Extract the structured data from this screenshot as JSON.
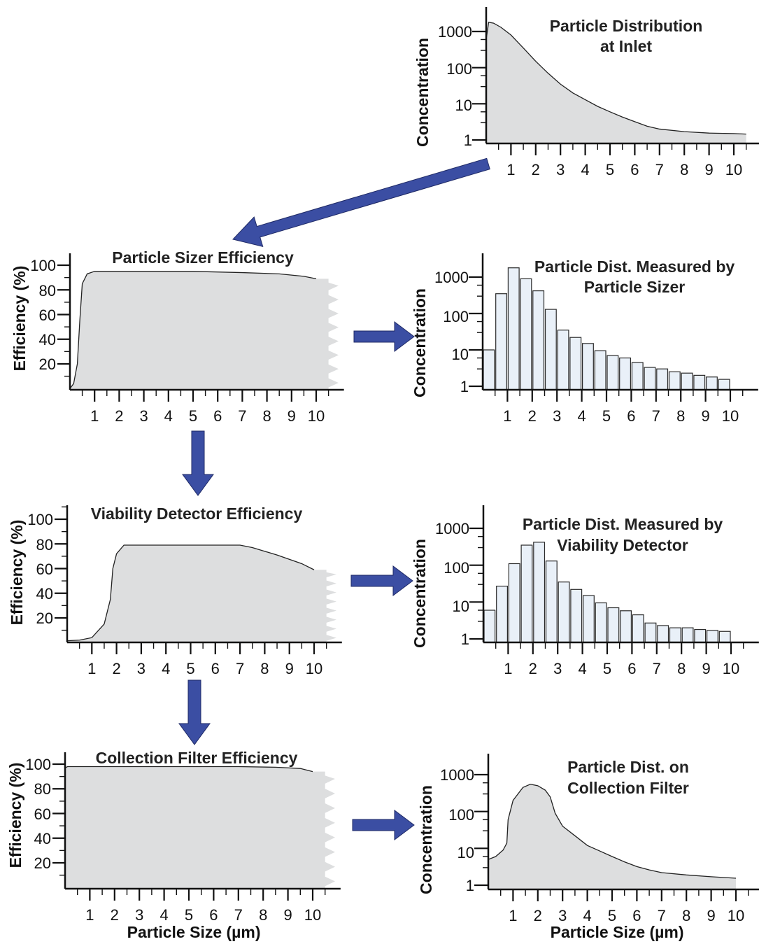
{
  "x_ticks": [
    "1",
    "2",
    "3",
    "4",
    "5",
    "6",
    "7",
    "8",
    "9",
    "10"
  ],
  "panels": [
    {
      "id": "inlet",
      "type": "area",
      "title": [
        "Particle Distribution",
        "at Inlet"
      ],
      "ylabel": "Concentration",
      "xlabel": "",
      "scale": "log",
      "y_ticks": [
        "1",
        "10",
        "100",
        "1000"
      ],
      "y_tick_values": [
        1,
        10,
        100,
        1000
      ],
      "ylim": [
        1,
        3000
      ],
      "xlim": [
        0,
        10.9
      ],
      "curve": [
        [
          0,
          600
        ],
        [
          0.1,
          1800
        ],
        [
          0.3,
          1700
        ],
        [
          0.6,
          1300
        ],
        [
          1,
          800
        ],
        [
          1.5,
          350
        ],
        [
          2,
          150
        ],
        [
          2.5,
          70
        ],
        [
          3,
          35
        ],
        [
          3.5,
          20
        ],
        [
          4,
          13
        ],
        [
          4.5,
          8.5
        ],
        [
          5,
          6
        ],
        [
          5.5,
          4.3
        ],
        [
          6,
          3.2
        ],
        [
          6.5,
          2.4
        ],
        [
          7,
          2
        ],
        [
          8,
          1.7
        ],
        [
          9,
          1.55
        ],
        [
          10,
          1.5
        ],
        [
          10.5,
          1.45
        ]
      ]
    },
    {
      "id": "sizer-eff",
      "type": "efficiency",
      "title": [
        "Particle Sizer Efficiency"
      ],
      "ylabel": "Efficiency (%)",
      "xlabel": "",
      "scale": "linear",
      "y_ticks": [
        "20",
        "40",
        "60",
        "80",
        "100"
      ],
      "y_tick_values": [
        20,
        40,
        60,
        80,
        100
      ],
      "ylim": [
        0,
        100
      ],
      "xlim": [
        0,
        10.9
      ],
      "curve": [
        [
          0,
          0
        ],
        [
          0.15,
          4
        ],
        [
          0.3,
          20
        ],
        [
          0.4,
          55
        ],
        [
          0.5,
          85
        ],
        [
          0.7,
          93
        ],
        [
          1,
          95
        ],
        [
          3,
          95
        ],
        [
          5,
          95
        ],
        [
          7,
          94
        ],
        [
          8.5,
          93
        ],
        [
          9.5,
          91
        ],
        [
          10,
          89
        ]
      ]
    },
    {
      "id": "sizer-dist",
      "type": "bar",
      "title": [
        "Particle Dist. Measured by",
        "Particle Sizer"
      ],
      "ylabel": "Concentration",
      "xlabel": "",
      "scale": "log",
      "y_ticks": [
        "1",
        "10",
        "100",
        "1000"
      ],
      "y_tick_values": [
        1,
        10,
        100,
        1000
      ],
      "ylim": [
        1,
        3000
      ],
      "xlim": [
        0,
        10.9
      ],
      "bar_width": 0.5,
      "bars": [
        [
          0.25,
          10
        ],
        [
          0.75,
          350
        ],
        [
          1.25,
          1800
        ],
        [
          1.75,
          900
        ],
        [
          2.25,
          420
        ],
        [
          2.75,
          130
        ],
        [
          3.25,
          35
        ],
        [
          3.75,
          22
        ],
        [
          4.25,
          15
        ],
        [
          4.75,
          9.5
        ],
        [
          5.25,
          7
        ],
        [
          5.75,
          6
        ],
        [
          6.25,
          4.5
        ],
        [
          6.75,
          3.3
        ],
        [
          7.25,
          3
        ],
        [
          7.75,
          2.5
        ],
        [
          8.25,
          2.3
        ],
        [
          8.75,
          2
        ],
        [
          9.25,
          1.8
        ],
        [
          9.75,
          1.55
        ]
      ]
    },
    {
      "id": "viability-eff",
      "type": "efficiency",
      "title": [
        "Viability Detector Efficiency"
      ],
      "ylabel": "Efficiency (%)",
      "xlabel": "",
      "scale": "linear",
      "y_ticks": [
        "20",
        "40",
        "60",
        "80",
        "100"
      ],
      "y_tick_values": [
        20,
        40,
        60,
        80,
        100
      ],
      "ylim": [
        0,
        100
      ],
      "xlim": [
        0,
        10.9
      ],
      "curve": [
        [
          0,
          1.5
        ],
        [
          0.5,
          2
        ],
        [
          1,
          4
        ],
        [
          1.5,
          15
        ],
        [
          1.75,
          35
        ],
        [
          1.85,
          60
        ],
        [
          2,
          72
        ],
        [
          2.3,
          79
        ],
        [
          3,
          79
        ],
        [
          5,
          79
        ],
        [
          7,
          79
        ],
        [
          7.5,
          77
        ],
        [
          8.5,
          71
        ],
        [
          9.5,
          64
        ],
        [
          10,
          59
        ]
      ]
    },
    {
      "id": "viability-dist",
      "type": "bar",
      "title": [
        "Particle Dist. Measured by",
        "Viability Detector"
      ],
      "ylabel": "Concentration",
      "xlabel": "",
      "scale": "log",
      "y_ticks": [
        "1",
        "10",
        "100",
        "1000"
      ],
      "y_tick_values": [
        1,
        10,
        100,
        1000
      ],
      "ylim": [
        1,
        3000
      ],
      "xlim": [
        0,
        10.9
      ],
      "bar_width": 0.5,
      "bars": [
        [
          0.25,
          6
        ],
        [
          0.75,
          27
        ],
        [
          1.25,
          110
        ],
        [
          1.75,
          350
        ],
        [
          2.25,
          420
        ],
        [
          2.75,
          130
        ],
        [
          3.25,
          35
        ],
        [
          3.75,
          22
        ],
        [
          4.25,
          15
        ],
        [
          4.75,
          9.5
        ],
        [
          5.25,
          7
        ],
        [
          5.75,
          5.8
        ],
        [
          6.25,
          4.5
        ],
        [
          6.75,
          2.7
        ],
        [
          7.25,
          2.3
        ],
        [
          7.75,
          2
        ],
        [
          8.25,
          2
        ],
        [
          8.75,
          1.8
        ],
        [
          9.25,
          1.7
        ],
        [
          9.75,
          1.6
        ]
      ]
    },
    {
      "id": "filter-eff",
      "type": "efficiency",
      "title": [
        "Collection Filter Efficiency"
      ],
      "ylabel": "Efficiency (%)",
      "xlabel": "Particle Size (µm)",
      "scale": "linear",
      "y_ticks": [
        "20",
        "40",
        "60",
        "80",
        "100"
      ],
      "y_tick_values": [
        20,
        40,
        60,
        80,
        100
      ],
      "ylim": [
        0,
        100
      ],
      "xlim": [
        0,
        10.9
      ],
      "curve": [
        [
          0,
          97
        ],
        [
          0.1,
          98
        ],
        [
          1,
          98
        ],
        [
          3,
          98
        ],
        [
          5,
          98
        ],
        [
          7,
          98
        ],
        [
          8.5,
          97.5
        ],
        [
          9.5,
          96.5
        ],
        [
          10,
          94
        ]
      ]
    },
    {
      "id": "filter-dist",
      "type": "area",
      "title": [
        "Particle Dist. on",
        "Collection Filter"
      ],
      "ylabel": "Concentration",
      "xlabel": "Particle Size (µm)",
      "scale": "log",
      "y_ticks": [
        "1",
        "10",
        "100",
        "1000"
      ],
      "y_tick_values": [
        1,
        10,
        100,
        1000
      ],
      "ylim": [
        1,
        3000
      ],
      "xlim": [
        0,
        10.9
      ],
      "curve": [
        [
          0,
          5
        ],
        [
          0.3,
          6
        ],
        [
          0.6,
          9
        ],
        [
          0.75,
          14
        ],
        [
          0.8,
          60
        ],
        [
          1,
          200
        ],
        [
          1.4,
          450
        ],
        [
          1.7,
          550
        ],
        [
          2,
          500
        ],
        [
          2.3,
          380
        ],
        [
          2.5,
          250
        ],
        [
          2.7,
          90
        ],
        [
          3,
          40
        ],
        [
          3.5,
          22
        ],
        [
          4,
          12
        ],
        [
          4.5,
          8.5
        ],
        [
          5,
          6
        ],
        [
          5.5,
          4.3
        ],
        [
          6,
          3.2
        ],
        [
          6.5,
          2.6
        ],
        [
          7,
          2.2
        ],
        [
          8,
          1.9
        ],
        [
          9,
          1.7
        ],
        [
          10,
          1.55
        ]
      ]
    }
  ],
  "arrow_color": "#3b4ea3",
  "fill_color": "#dddedf",
  "bar_color": "#e9f0f8"
}
